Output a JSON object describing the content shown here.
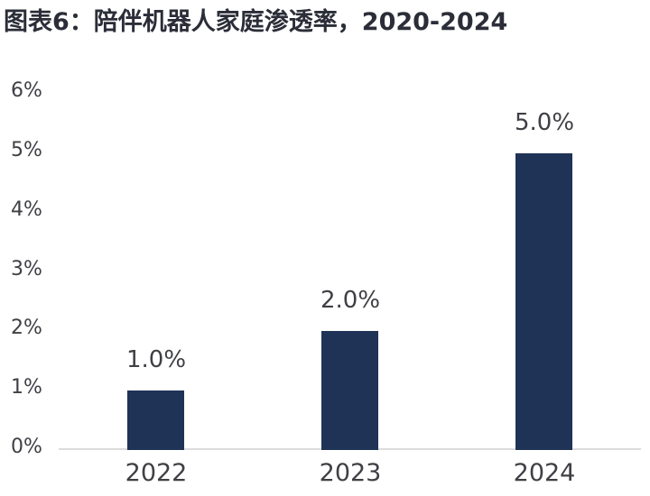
{
  "title": "图表6：陪伴机器人家庭渗透率，2020-2024",
  "colors": {
    "bar": "#1F3357",
    "title": "#2B2E38",
    "axis_label": "#3F4045",
    "data_label": "#3F4045",
    "axis_line": "#DCDCDC",
    "background": "#FFFFFF"
  },
  "chart_data": {
    "type": "bar",
    "title": "图表6：陪伴机器人家庭渗透率，2020-2024",
    "categories": [
      "2022",
      "2023",
      "2024"
    ],
    "values": [
      1.0,
      2.0,
      5.0
    ],
    "data_labels": [
      "1.0%",
      "2.0%",
      "5.0%"
    ],
    "y_ticks": [
      "0%",
      "1%",
      "2%",
      "3%",
      "4%",
      "5%",
      "6%"
    ],
    "ylim": [
      0,
      6
    ],
    "xlabel": "",
    "ylabel": "",
    "grid": false,
    "legend": "none",
    "unit": "percent"
  }
}
